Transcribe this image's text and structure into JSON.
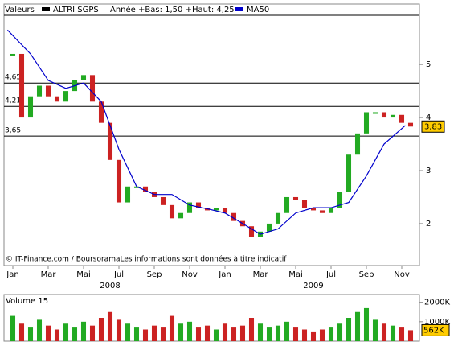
{
  "chart_data": {
    "type": "candlestick",
    "header_label": "Valeurs",
    "range_label": "Année +Bas: 1,50 +Haut: 4,25",
    "source": "© IT-Finance.com / BoursoramaLes informations sont données à titre indicatif",
    "volume_title": "Volume 15",
    "xlim": [
      -0.5,
      23
    ],
    "xticks": [
      {
        "value": 0,
        "label": "Jan"
      },
      {
        "value": 2,
        "label": "Mar"
      },
      {
        "value": 4,
        "label": "Mai"
      },
      {
        "value": 6,
        "label": "Jul"
      },
      {
        "value": 8,
        "label": "Sep"
      },
      {
        "value": 10,
        "label": "Nov"
      },
      {
        "value": 12,
        "label": "Jan"
      },
      {
        "value": 14,
        "label": "Mar"
      },
      {
        "value": 16,
        "label": "Mai"
      },
      {
        "value": 18,
        "label": "Jul"
      },
      {
        "value": 20,
        "label": "Sep"
      },
      {
        "value": 22,
        "label": "Nov"
      }
    ],
    "year_labels": [
      {
        "value": 5.5,
        "label": "2008"
      },
      {
        "value": 17,
        "label": "2009"
      }
    ],
    "ylim": [
      1.21,
      6.14
    ],
    "yticks": [
      2,
      3,
      4,
      5
    ],
    "ref_lines": [
      {
        "value": 4.65,
        "label": "4,65"
      },
      {
        "value": 4.21,
        "label": "4,21"
      },
      {
        "value": 3.65,
        "label": "3,65"
      }
    ],
    "last": {
      "value": 3.83,
      "label": "3,83"
    },
    "up_color": "#22aa22",
    "down_color": "#cc2222",
    "series": [
      {
        "name": "ALTRI SGPS",
        "color": "#000000",
        "x": [
          0,
          0.5,
          1,
          1.5,
          2,
          2.5,
          3,
          3.5,
          4,
          4.5,
          5,
          5.5,
          6,
          6.5,
          7,
          7.5,
          8,
          8.5,
          9,
          9.5,
          10,
          10.5,
          11,
          11.5,
          12,
          12.5,
          13,
          13.5,
          14,
          14.5,
          15,
          15.5,
          16,
          16.5,
          17,
          17.5,
          18,
          18.5,
          19,
          19.5,
          20,
          20.5,
          21,
          21.5,
          22,
          22.5
        ],
        "values": [
          5.2,
          4.0,
          4.4,
          4.6,
          4.4,
          4.3,
          4.5,
          4.7,
          4.8,
          4.3,
          3.9,
          3.2,
          2.4,
          2.7,
          2.7,
          2.6,
          2.5,
          2.35,
          2.1,
          2.2,
          2.4,
          2.3,
          2.25,
          2.3,
          2.2,
          2.05,
          1.95,
          1.75,
          1.85,
          2.0,
          2.2,
          2.5,
          2.45,
          2.3,
          2.25,
          2.2,
          2.3,
          2.6,
          3.3,
          3.7,
          4.1,
          4.1,
          4.0,
          4.05,
          3.9,
          3.83
        ]
      },
      {
        "name": "MA50",
        "color": "#0000cc",
        "x": [
          -0.3,
          1,
          2,
          3,
          4,
          5,
          6,
          7,
          8,
          9,
          10,
          11,
          12,
          13,
          14,
          15,
          16,
          17,
          18,
          19,
          20,
          21,
          22.2
        ],
        "values": [
          5.65,
          5.2,
          4.7,
          4.55,
          4.65,
          4.3,
          3.4,
          2.7,
          2.55,
          2.55,
          2.35,
          2.28,
          2.2,
          2.0,
          1.8,
          1.9,
          2.2,
          2.3,
          2.3,
          2.4,
          2.9,
          3.5,
          3.85
        ]
      }
    ],
    "volume": {
      "ylim": [
        0,
        2400
      ],
      "yticks": [
        {
          "value": 1000,
          "label": "1000K"
        },
        {
          "value": 2000,
          "label": "2000K"
        }
      ],
      "last": {
        "value": 562,
        "label": "562K"
      },
      "values": [
        1300,
        900,
        700,
        1100,
        800,
        600,
        900,
        700,
        1000,
        800,
        1200,
        1500,
        1100,
        900,
        700,
        600,
        800,
        700,
        1300,
        900,
        1000,
        700,
        800,
        600,
        900,
        700,
        800,
        1200,
        900,
        700,
        800,
        1000,
        700,
        600,
        500,
        600,
        700,
        900,
        1200,
        1500,
        1700,
        1100,
        900,
        800,
        700,
        562
      ]
    }
  }
}
